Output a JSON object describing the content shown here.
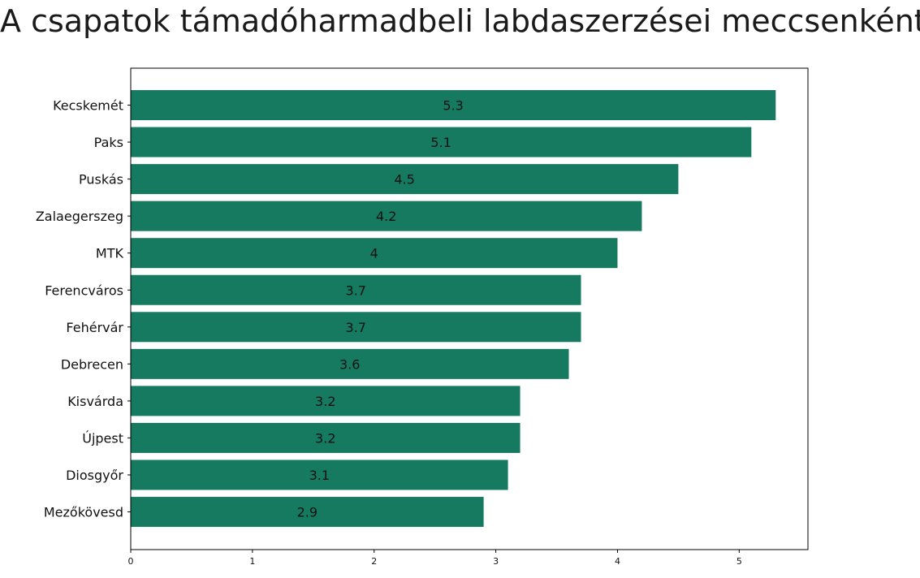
{
  "chart_data": {
    "type": "bar",
    "orientation": "horizontal",
    "title": "A csapatok támadóharmadbeli labdaszerzései meccsenként",
    "xlabel": "",
    "ylabel": "",
    "categories": [
      "Kecskemét",
      "Paks",
      "Puskás",
      "Zalaegerszeg",
      "MTK",
      "Ferencváros",
      "Fehérvár",
      "Debrecen",
      "Kisvárda",
      "Újpest",
      "Diosgyőr",
      "Mezőkövesd"
    ],
    "values": [
      5.3,
      5.1,
      4.5,
      4.2,
      4,
      3.7,
      3.7,
      3.6,
      3.2,
      3.2,
      3.1,
      2.9
    ],
    "data_labels": [
      "5.3",
      "5.1",
      "4.5",
      "4.2",
      "4",
      "3.7",
      "3.7",
      "3.6",
      "3.2",
      "3.2",
      "3.1",
      "2.9"
    ],
    "x_ticks": [
      0,
      1,
      2,
      3,
      4,
      5
    ],
    "x_tick_labels": [
      "0",
      "1",
      "2",
      "3",
      "4",
      "5"
    ],
    "xlim": [
      0,
      5.565
    ],
    "grid": false,
    "bar_color": "#157a5f"
  }
}
